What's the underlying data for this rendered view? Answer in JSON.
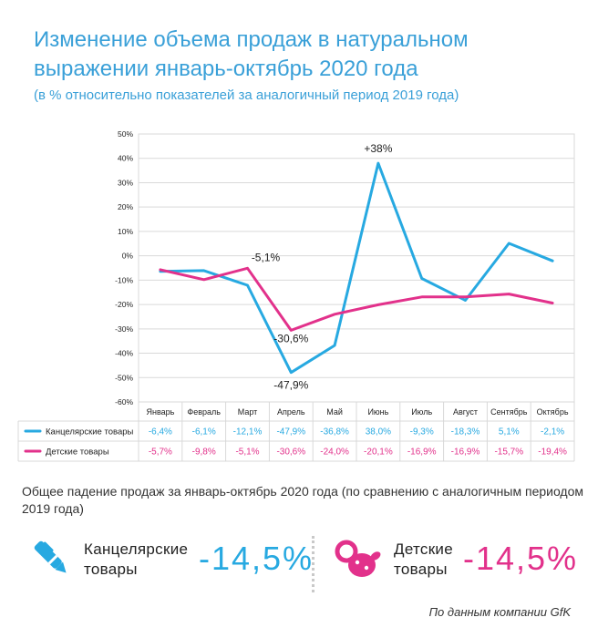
{
  "title": "Изменение объема продаж в натуральном выражении январь-октябрь 2020 года",
  "subtitle": "(в % относительно показателей за аналогичный период 2019 года)",
  "colors": {
    "stationery": "#27a9e1",
    "kids": "#e2318b",
    "accent": "#3aa0d8",
    "grid": "#d9d9d9"
  },
  "chart_data": {
    "type": "line",
    "categories": [
      "Январь",
      "Февраль",
      "Март",
      "Апрель",
      "Май",
      "Июнь",
      "Июль",
      "Август",
      "Сентябрь",
      "Октябрь"
    ],
    "ylim": [
      -60,
      50
    ],
    "yticks": [
      50,
      40,
      30,
      20,
      10,
      0,
      -10,
      -20,
      -30,
      -40,
      -50,
      -60
    ],
    "ytick_labels": [
      "50%",
      "40%",
      "30%",
      "20%",
      "10%",
      "0%",
      "-10%",
      "-20%",
      "-30%",
      "-40%",
      "-50%",
      "-60%"
    ],
    "grid": true,
    "series": [
      {
        "name": "Канцелярские товары",
        "color": "#27a9e1",
        "values": [
          -6.4,
          -6.1,
          -12.1,
          -47.9,
          -36.8,
          38.0,
          -9.3,
          -18.3,
          5.1,
          -2.1
        ],
        "table_labels": [
          "-6,4%",
          "-6,1%",
          "-12,1%",
          "-47,9%",
          "-36,8%",
          "38,0%",
          "-9,3%",
          "-18,3%",
          "5,1%",
          "-2,1%"
        ]
      },
      {
        "name": "Детские товары",
        "color": "#e2318b",
        "values": [
          -5.7,
          -9.8,
          -5.1,
          -30.6,
          -24.0,
          -20.1,
          -16.9,
          -16.9,
          -15.7,
          -19.4
        ],
        "table_labels": [
          "-5,7%",
          "-9,8%",
          "-5,1%",
          "-30,6%",
          "-24,0%",
          "-20,1%",
          "-16,9%",
          "-16,9%",
          "-15,7%",
          "-19,4%"
        ]
      }
    ],
    "annotations": [
      {
        "text": "+38%",
        "series": 0,
        "index": 5
      },
      {
        "text": "-47,9%",
        "series": 0,
        "index": 3
      },
      {
        "text": "-30,6%",
        "series": 1,
        "index": 3
      },
      {
        "text": "-5,1%",
        "series": 1,
        "index": 2
      }
    ]
  },
  "summary": "Общее падение продаж за январь-октябрь 2020 года (по сравнению с аналогичным периодом 2019 года)",
  "kpis": {
    "stationery": {
      "label_line1": "Канцелярские",
      "label_line2": "товары",
      "value": "-14,5%",
      "icon": "pen-icon"
    },
    "kids": {
      "label_line1": "Детские",
      "label_line2": "товары",
      "value": "-14,5%",
      "icon": "pacifier-icon"
    }
  },
  "source": "По данным компании GfK"
}
